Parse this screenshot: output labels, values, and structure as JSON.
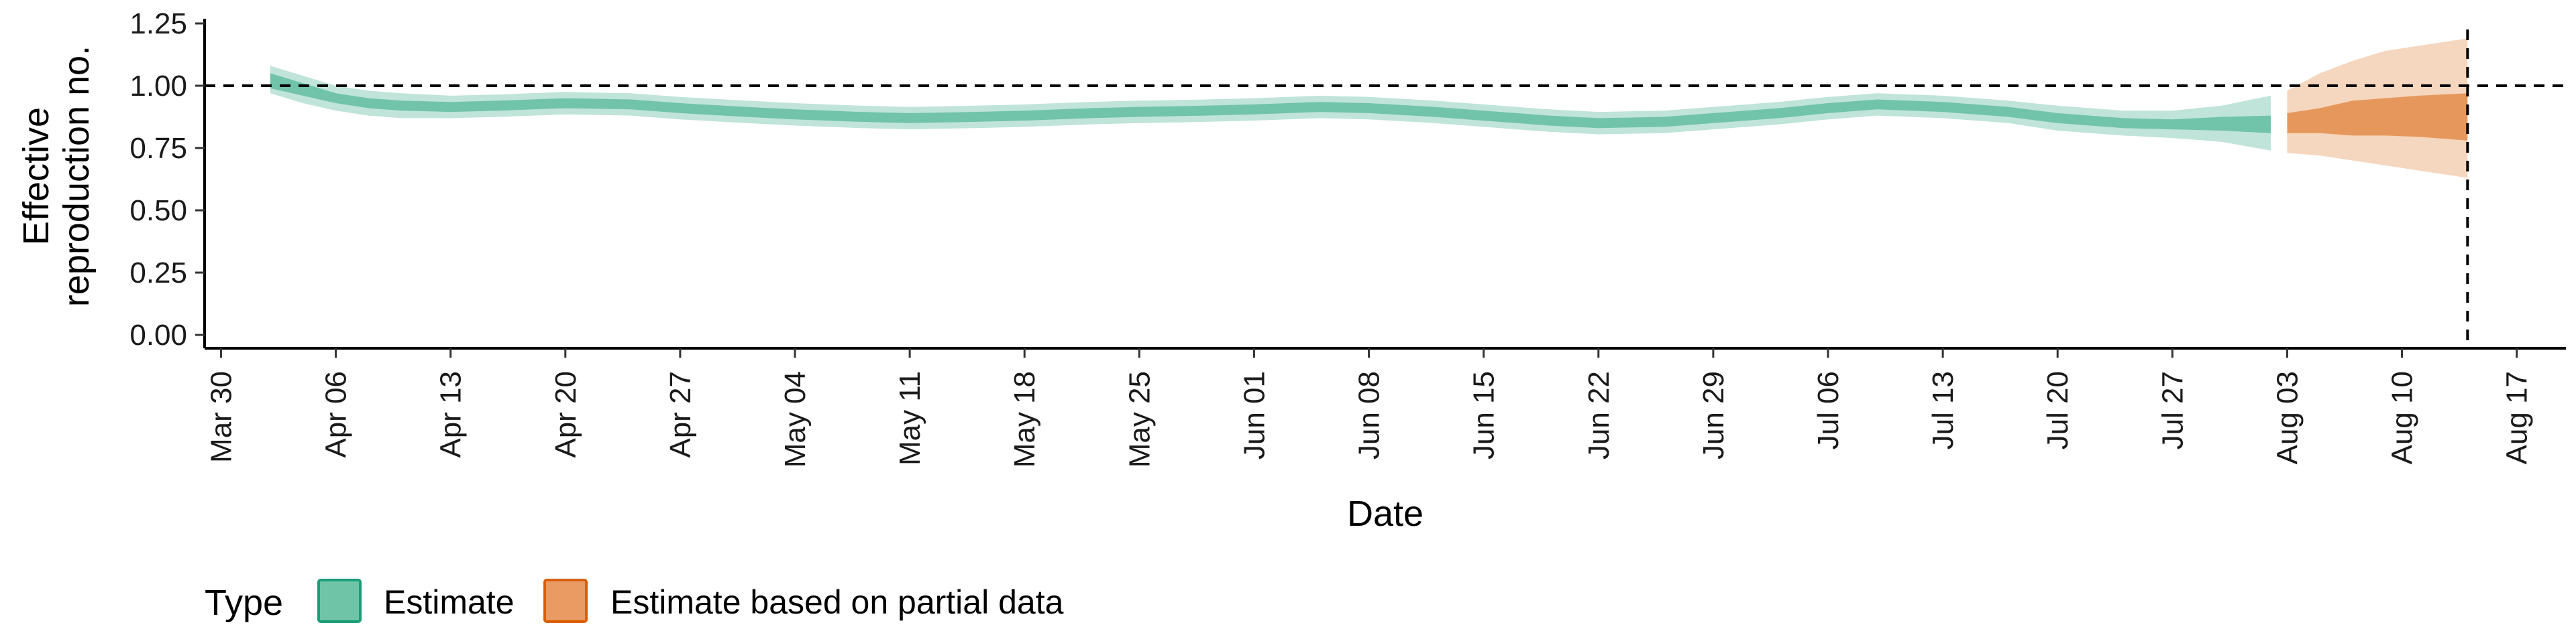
{
  "chart_data": {
    "type": "area",
    "title": "",
    "xlabel": "Date",
    "ylabel_lines": [
      "Effective",
      "reproduction no."
    ],
    "ylim": [
      0,
      1.25
    ],
    "yticks": [
      0.0,
      0.25,
      0.5,
      0.75,
      1.0,
      1.25
    ],
    "ytick_labels": [
      "0.00",
      "0.25",
      "0.50",
      "0.75",
      "1.00",
      "1.25"
    ],
    "xlim": [
      "2020-03-29",
      "2020-08-20"
    ],
    "xticks": [
      "2020-03-30",
      "2020-04-06",
      "2020-04-13",
      "2020-04-20",
      "2020-04-27",
      "2020-05-04",
      "2020-05-11",
      "2020-05-18",
      "2020-05-25",
      "2020-06-01",
      "2020-06-08",
      "2020-06-15",
      "2020-06-22",
      "2020-06-29",
      "2020-07-06",
      "2020-07-13",
      "2020-07-20",
      "2020-07-27",
      "2020-08-03",
      "2020-08-10",
      "2020-08-17"
    ],
    "xtick_labels": [
      "Mar 30",
      "Apr 06",
      "Apr 13",
      "Apr 20",
      "Apr 27",
      "May 04",
      "May 11",
      "May 18",
      "May 25",
      "Jun 01",
      "Jun 08",
      "Jun 15",
      "Jun 22",
      "Jun 29",
      "Jul 06",
      "Jul 13",
      "Jul 20",
      "Jul 27",
      "Aug 03",
      "Aug 10",
      "Aug 17"
    ],
    "reference_hline": 1.0,
    "reference_vline": "2020-08-14",
    "legend": {
      "title": "Type",
      "position": "bottom",
      "items": [
        {
          "label": "Estimate",
          "fill": "#6fc4a7",
          "border": "#1b9e77"
        },
        {
          "label": "Estimate based on partial data",
          "fill": "#ea9b63",
          "border": "#d95f02"
        }
      ]
    },
    "series": [
      {
        "name": "Estimate",
        "color": "#1b9e77",
        "points": [
          {
            "x": "2020-04-02",
            "median": 1.02,
            "lo50": 0.99,
            "hi50": 1.05,
            "lo90": 0.97,
            "hi90": 1.08
          },
          {
            "x": "2020-04-04",
            "median": 0.98,
            "lo50": 0.96,
            "hi50": 1.01,
            "lo90": 0.93,
            "hi90": 1.04
          },
          {
            "x": "2020-04-06",
            "median": 0.95,
            "lo50": 0.93,
            "hi50": 0.97,
            "lo90": 0.9,
            "hi90": 1.0
          },
          {
            "x": "2020-04-08",
            "median": 0.93,
            "lo50": 0.91,
            "hi50": 0.95,
            "lo90": 0.88,
            "hi90": 0.98
          },
          {
            "x": "2020-04-10",
            "median": 0.92,
            "lo50": 0.9,
            "hi50": 0.94,
            "lo90": 0.87,
            "hi90": 0.97
          },
          {
            "x": "2020-04-13",
            "median": 0.915,
            "lo50": 0.895,
            "hi50": 0.935,
            "lo90": 0.87,
            "hi90": 0.96
          },
          {
            "x": "2020-04-16",
            "median": 0.92,
            "lo50": 0.9,
            "hi50": 0.94,
            "lo90": 0.875,
            "hi90": 0.965
          },
          {
            "x": "2020-04-20",
            "median": 0.93,
            "lo50": 0.91,
            "hi50": 0.95,
            "lo90": 0.885,
            "hi90": 0.975
          },
          {
            "x": "2020-04-24",
            "median": 0.925,
            "lo50": 0.905,
            "hi50": 0.945,
            "lo90": 0.88,
            "hi90": 0.97
          },
          {
            "x": "2020-04-27",
            "median": 0.91,
            "lo50": 0.89,
            "hi50": 0.93,
            "lo90": 0.865,
            "hi90": 0.955
          },
          {
            "x": "2020-05-01",
            "median": 0.895,
            "lo50": 0.875,
            "hi50": 0.915,
            "lo90": 0.85,
            "hi90": 0.94
          },
          {
            "x": "2020-05-04",
            "median": 0.885,
            "lo50": 0.865,
            "hi50": 0.905,
            "lo90": 0.84,
            "hi90": 0.93
          },
          {
            "x": "2020-05-08",
            "median": 0.875,
            "lo50": 0.855,
            "hi50": 0.895,
            "lo90": 0.83,
            "hi90": 0.92
          },
          {
            "x": "2020-05-11",
            "median": 0.87,
            "lo50": 0.85,
            "hi50": 0.89,
            "lo90": 0.825,
            "hi90": 0.915
          },
          {
            "x": "2020-05-15",
            "median": 0.875,
            "lo50": 0.855,
            "hi50": 0.895,
            "lo90": 0.83,
            "hi90": 0.92
          },
          {
            "x": "2020-05-18",
            "median": 0.88,
            "lo50": 0.86,
            "hi50": 0.9,
            "lo90": 0.835,
            "hi90": 0.925
          },
          {
            "x": "2020-05-22",
            "median": 0.89,
            "lo50": 0.87,
            "hi50": 0.91,
            "lo90": 0.845,
            "hi90": 0.935
          },
          {
            "x": "2020-05-25",
            "median": 0.895,
            "lo50": 0.875,
            "hi50": 0.915,
            "lo90": 0.85,
            "hi90": 0.94
          },
          {
            "x": "2020-05-29",
            "median": 0.9,
            "lo50": 0.88,
            "hi50": 0.92,
            "lo90": 0.855,
            "hi90": 0.945
          },
          {
            "x": "2020-06-01",
            "median": 0.905,
            "lo50": 0.885,
            "hi50": 0.925,
            "lo90": 0.86,
            "hi90": 0.95
          },
          {
            "x": "2020-06-05",
            "median": 0.915,
            "lo50": 0.895,
            "hi50": 0.935,
            "lo90": 0.87,
            "hi90": 0.96
          },
          {
            "x": "2020-06-08",
            "median": 0.91,
            "lo50": 0.89,
            "hi50": 0.93,
            "lo90": 0.865,
            "hi90": 0.955
          },
          {
            "x": "2020-06-12",
            "median": 0.895,
            "lo50": 0.875,
            "hi50": 0.915,
            "lo90": 0.85,
            "hi90": 0.94
          },
          {
            "x": "2020-06-15",
            "median": 0.88,
            "lo50": 0.86,
            "hi50": 0.9,
            "lo90": 0.835,
            "hi90": 0.925
          },
          {
            "x": "2020-06-19",
            "median": 0.86,
            "lo50": 0.84,
            "hi50": 0.88,
            "lo90": 0.815,
            "hi90": 0.905
          },
          {
            "x": "2020-06-22",
            "median": 0.85,
            "lo50": 0.83,
            "hi50": 0.87,
            "lo90": 0.805,
            "hi90": 0.895
          },
          {
            "x": "2020-06-26",
            "median": 0.855,
            "lo50": 0.835,
            "hi50": 0.875,
            "lo90": 0.81,
            "hi90": 0.9
          },
          {
            "x": "2020-06-29",
            "median": 0.87,
            "lo50": 0.85,
            "hi50": 0.89,
            "lo90": 0.825,
            "hi90": 0.915
          },
          {
            "x": "2020-07-03",
            "median": 0.89,
            "lo50": 0.87,
            "hi50": 0.91,
            "lo90": 0.845,
            "hi90": 0.935
          },
          {
            "x": "2020-07-06",
            "median": 0.91,
            "lo50": 0.89,
            "hi50": 0.93,
            "lo90": 0.865,
            "hi90": 0.955
          },
          {
            "x": "2020-07-09",
            "median": 0.925,
            "lo50": 0.905,
            "hi50": 0.945,
            "lo90": 0.88,
            "hi90": 0.97
          },
          {
            "x": "2020-07-13",
            "median": 0.915,
            "lo50": 0.895,
            "hi50": 0.935,
            "lo90": 0.87,
            "hi90": 0.96
          },
          {
            "x": "2020-07-17",
            "median": 0.895,
            "lo50": 0.875,
            "hi50": 0.915,
            "lo90": 0.85,
            "hi90": 0.94
          },
          {
            "x": "2020-07-20",
            "median": 0.87,
            "lo50": 0.85,
            "hi50": 0.89,
            "lo90": 0.82,
            "hi90": 0.92
          },
          {
            "x": "2020-07-24",
            "median": 0.85,
            "lo50": 0.83,
            "hi50": 0.87,
            "lo90": 0.8,
            "hi90": 0.9
          },
          {
            "x": "2020-07-27",
            "median": 0.845,
            "lo50": 0.825,
            "hi50": 0.865,
            "lo90": 0.79,
            "hi90": 0.9
          },
          {
            "x": "2020-07-30",
            "median": 0.85,
            "lo50": 0.82,
            "hi50": 0.875,
            "lo90": 0.775,
            "hi90": 0.92
          },
          {
            "x": "2020-08-02",
            "median": 0.85,
            "lo50": 0.81,
            "hi50": 0.88,
            "lo90": 0.74,
            "hi90": 0.96
          }
        ]
      },
      {
        "name": "Estimate based on partial data",
        "color": "#d95f02",
        "points": [
          {
            "x": "2020-08-03",
            "median": 0.85,
            "lo50": 0.81,
            "hi50": 0.89,
            "lo90": 0.73,
            "hi90": 0.98
          },
          {
            "x": "2020-08-05",
            "median": 0.86,
            "lo50": 0.81,
            "hi50": 0.91,
            "lo90": 0.72,
            "hi90": 1.05
          },
          {
            "x": "2020-08-07",
            "median": 0.87,
            "lo50": 0.8,
            "hi50": 0.94,
            "lo90": 0.7,
            "hi90": 1.1
          },
          {
            "x": "2020-08-09",
            "median": 0.875,
            "lo50": 0.8,
            "hi50": 0.95,
            "lo90": 0.68,
            "hi90": 1.14
          },
          {
            "x": "2020-08-11",
            "median": 0.875,
            "lo50": 0.795,
            "hi50": 0.96,
            "lo90": 0.66,
            "hi90": 1.16
          },
          {
            "x": "2020-08-14",
            "median": 0.87,
            "lo50": 0.78,
            "hi50": 0.97,
            "lo90": 0.63,
            "hi90": 1.19
          }
        ]
      }
    ]
  }
}
